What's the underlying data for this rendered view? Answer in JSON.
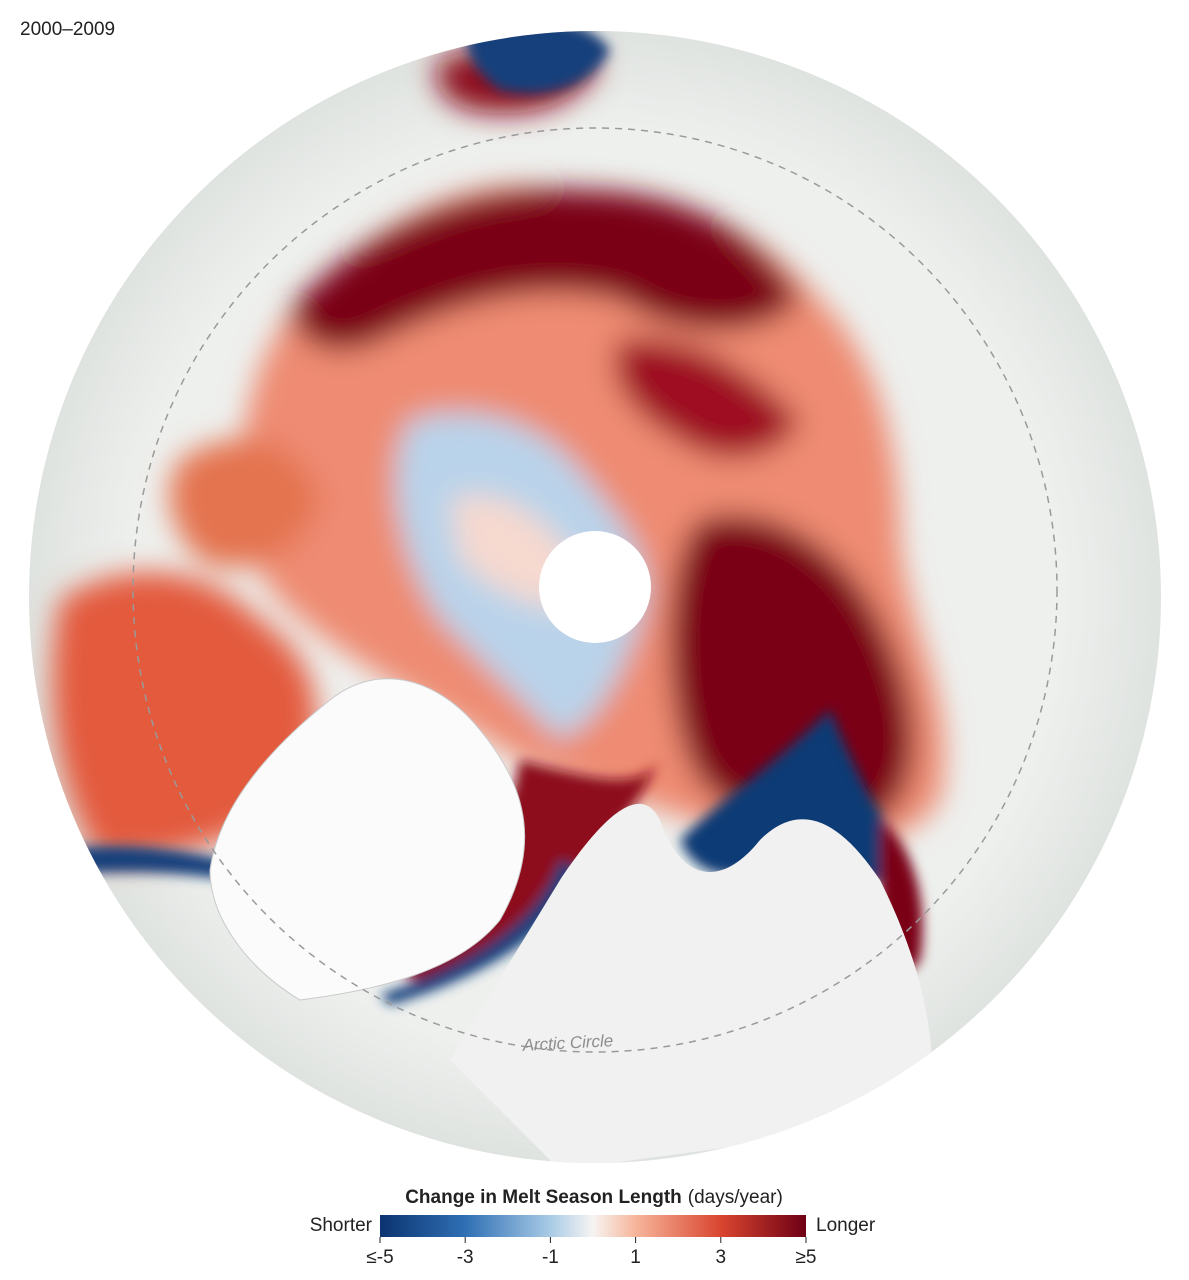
{
  "period": "2000–2009",
  "map": {
    "circle_label": "Arctic Circle"
  },
  "legend": {
    "title": "Change in Melt Season Length",
    "unit": "(days/year)",
    "low_label": "Shorter",
    "high_label": "Longer",
    "ticks": [
      "≤-5",
      "-3",
      "-1",
      "1",
      "3",
      "≥5"
    ]
  }
}
